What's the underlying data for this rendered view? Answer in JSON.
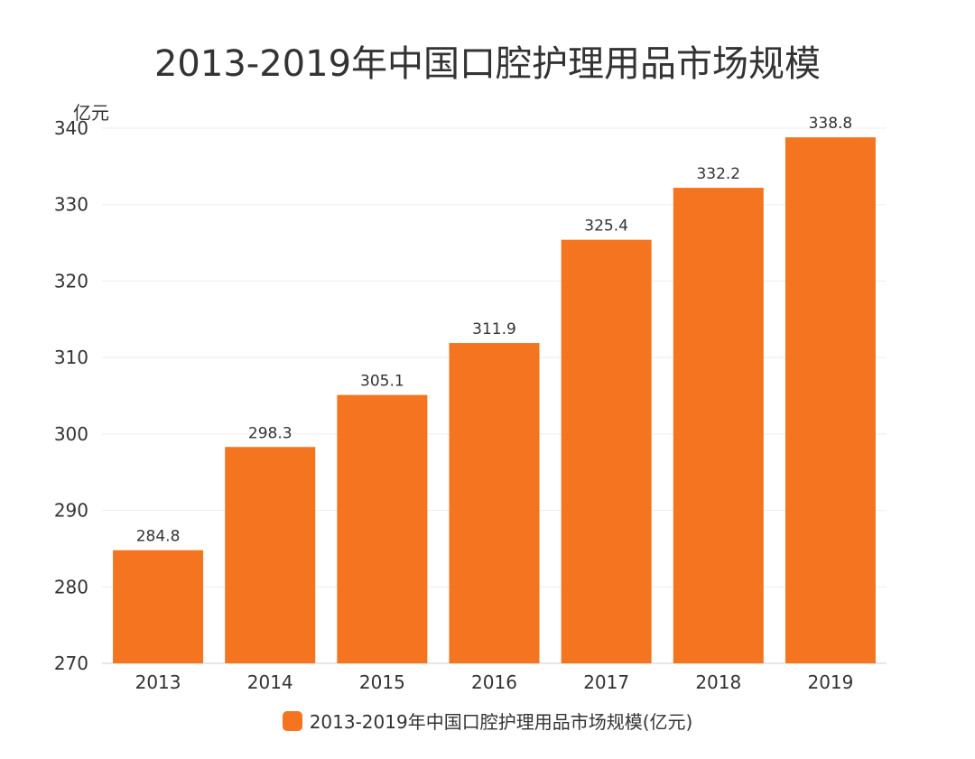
{
  "chart_data": {
    "type": "bar",
    "title": "2013-2019年中国口腔护理用品市场规模",
    "ylabel": "亿元",
    "xlabel": "",
    "categories": [
      "2013",
      "2014",
      "2015",
      "2016",
      "2017",
      "2018",
      "2019"
    ],
    "series": [
      {
        "name": "2013-2019年中国口腔护理用品市场规模(亿元)",
        "values": [
          284.8,
          298.3,
          305.1,
          311.9,
          325.4,
          332.2,
          338.8
        ]
      }
    ],
    "ylim": [
      270,
      340
    ],
    "yticks": [
      "270",
      "280",
      "290",
      "300",
      "310",
      "320",
      "330",
      "340"
    ],
    "data_labels": [
      "284.8",
      "298.3",
      "305.1",
      "311.9",
      "325.4",
      "332.2",
      "338.8"
    ],
    "grid": true,
    "legend_position": "bottom",
    "bar_color": "#F5741F"
  }
}
